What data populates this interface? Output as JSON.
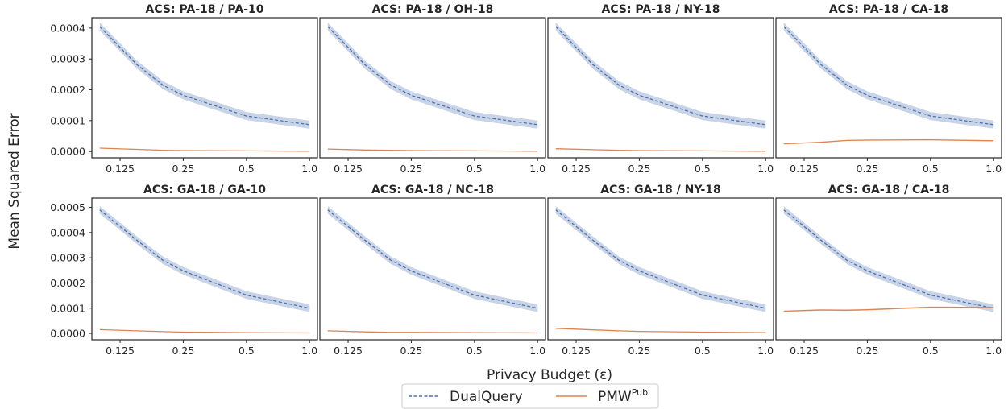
{
  "figure": {
    "ylabel": "Mean Squared Error",
    "xlabel": "Privacy Budget (ε)",
    "legend": [
      {
        "name": "DualQuery",
        "color": "#4c72b0",
        "style": "dashed"
      },
      {
        "name": "PMW",
        "sup": "Pub",
        "color": "#dd8452",
        "style": "solid"
      }
    ],
    "legend_placement": "bottom-center"
  },
  "chart_data": [
    {
      "type": "line",
      "title": "ACS: PA-18 / PA-10",
      "xscale": "log",
      "x": [
        0.1,
        0.15,
        0.2,
        0.25,
        0.5,
        1.0
      ],
      "xticks": [
        0.125,
        0.25,
        0.5,
        1.0
      ],
      "xticklabels": [
        "0.125",
        "0.25",
        "0.5",
        "1.0"
      ],
      "ylim": [
        0,
        0.00042
      ],
      "yticks": [
        "0.0000",
        "0.0001",
        "0.0002",
        "0.0003",
        "0.0004"
      ],
      "series": [
        {
          "name": "DualQuery",
          "values": [
            0.000405,
            0.000282,
            0.000215,
            0.000182,
            0.000115,
            8.7e-05
          ],
          "band": 1.3e-05
        },
        {
          "name": "PMW",
          "values": [
            1.1e-05,
            7e-06,
            4e-06,
            3e-06,
            2e-06,
            1e-06
          ],
          "band": 1e-06
        }
      ]
    },
    {
      "type": "line",
      "title": "ACS: PA-18 / OH-18",
      "xscale": "log",
      "x": [
        0.1,
        0.15,
        0.2,
        0.25,
        0.5,
        1.0
      ],
      "xticks": [
        0.125,
        0.25,
        0.5,
        1.0
      ],
      "xticklabels": [
        "0.125",
        "0.25",
        "0.5",
        "1.0"
      ],
      "ylim": [
        0,
        0.00042
      ],
      "yticks": [],
      "series": [
        {
          "name": "DualQuery",
          "values": [
            0.000405,
            0.000282,
            0.000215,
            0.000182,
            0.000115,
            8.7e-05
          ],
          "band": 1.3e-05
        },
        {
          "name": "PMW",
          "values": [
            8e-06,
            5e-06,
            4e-06,
            3e-06,
            2e-06,
            1e-06
          ],
          "band": 1e-06
        }
      ]
    },
    {
      "type": "line",
      "title": "ACS: PA-18 / NY-18",
      "xscale": "log",
      "x": [
        0.1,
        0.15,
        0.2,
        0.25,
        0.5,
        1.0
      ],
      "xticks": [
        0.125,
        0.25,
        0.5,
        1.0
      ],
      "xticklabels": [
        "0.125",
        "0.25",
        "0.5",
        "1.0"
      ],
      "ylim": [
        0,
        0.00042
      ],
      "yticks": [],
      "series": [
        {
          "name": "DualQuery",
          "values": [
            0.000405,
            0.000282,
            0.000215,
            0.000182,
            0.000115,
            8.7e-05
          ],
          "band": 1.3e-05
        },
        {
          "name": "PMW",
          "values": [
            9e-06,
            6e-06,
            4e-06,
            3e-06,
            2e-06,
            1e-06
          ],
          "band": 1e-06
        }
      ]
    },
    {
      "type": "line",
      "title": "ACS: PA-18 / CA-18",
      "xscale": "log",
      "x": [
        0.1,
        0.15,
        0.2,
        0.25,
        0.5,
        1.0
      ],
      "xticks": [
        0.125,
        0.25,
        0.5,
        1.0
      ],
      "xticklabels": [
        "0.125",
        "0.25",
        "0.5",
        "1.0"
      ],
      "ylim": [
        0,
        0.00042
      ],
      "yticks": [],
      "series": [
        {
          "name": "DualQuery",
          "values": [
            0.000405,
            0.000282,
            0.000215,
            0.000182,
            0.000115,
            8.7e-05
          ],
          "band": 1.3e-05
        },
        {
          "name": "PMW",
          "values": [
            2.5e-05,
            3e-05,
            3.6e-05,
            3.7e-05,
            3.8e-05,
            3.5e-05
          ],
          "band": 2e-06
        }
      ]
    },
    {
      "type": "line",
      "title": "ACS: GA-18 / GA-10",
      "xscale": "log",
      "x": [
        0.1,
        0.15,
        0.2,
        0.25,
        0.5,
        1.0
      ],
      "xticks": [
        0.125,
        0.25,
        0.5,
        1.0
      ],
      "xticklabels": [
        "0.125",
        "0.25",
        "0.5",
        "1.0"
      ],
      "ylim": [
        0,
        0.00052
      ],
      "yticks": [
        "0.0000",
        "0.0001",
        "0.0002",
        "0.0003",
        "0.0004",
        "0.0005"
      ],
      "series": [
        {
          "name": "DualQuery",
          "values": [
            0.00049,
            0.00037,
            0.00029,
            0.000248,
            0.000152,
            0.0001
          ],
          "band": 1.5e-05
        },
        {
          "name": "PMW",
          "values": [
            1.5e-05,
            1e-05,
            7e-06,
            5e-06,
            3e-06,
            2e-06
          ],
          "band": 1e-06
        }
      ]
    },
    {
      "type": "line",
      "title": "ACS: GA-18 / NC-18",
      "xscale": "log",
      "x": [
        0.1,
        0.15,
        0.2,
        0.25,
        0.5,
        1.0
      ],
      "xticks": [
        0.125,
        0.25,
        0.5,
        1.0
      ],
      "xticklabels": [
        "0.125",
        "0.25",
        "0.5",
        "1.0"
      ],
      "ylim": [
        0,
        0.00052
      ],
      "yticks": [],
      "series": [
        {
          "name": "DualQuery",
          "values": [
            0.00049,
            0.00037,
            0.00029,
            0.000248,
            0.000152,
            0.0001
          ],
          "band": 1.5e-05
        },
        {
          "name": "PMW",
          "values": [
            1e-05,
            6e-06,
            4e-06,
            4e-06,
            3e-06,
            2e-06
          ],
          "band": 1e-06
        }
      ]
    },
    {
      "type": "line",
      "title": "ACS: GA-18 / NY-18",
      "xscale": "log",
      "x": [
        0.1,
        0.15,
        0.2,
        0.25,
        0.5,
        1.0
      ],
      "xticks": [
        0.125,
        0.25,
        0.5,
        1.0
      ],
      "xticklabels": [
        "0.125",
        "0.25",
        "0.5",
        "1.0"
      ],
      "ylim": [
        0,
        0.00052
      ],
      "yticks": [],
      "series": [
        {
          "name": "DualQuery",
          "values": [
            0.00049,
            0.00037,
            0.00029,
            0.000248,
            0.000152,
            0.0001
          ],
          "band": 1.5e-05
        },
        {
          "name": "PMW",
          "values": [
            2e-05,
            1.4e-05,
            1e-05,
            8e-06,
            5e-06,
            3e-06
          ],
          "band": 1e-06
        }
      ]
    },
    {
      "type": "line",
      "title": "ACS: GA-18 / CA-18",
      "xscale": "log",
      "x": [
        0.1,
        0.15,
        0.2,
        0.25,
        0.5,
        1.0
      ],
      "xticks": [
        0.125,
        0.25,
        0.5,
        1.0
      ],
      "xticklabels": [
        "0.125",
        "0.25",
        "0.5",
        "1.0"
      ],
      "ylim": [
        0,
        0.00052
      ],
      "yticks": [],
      "series": [
        {
          "name": "DualQuery",
          "values": [
            0.00049,
            0.00037,
            0.00029,
            0.000248,
            0.000152,
            0.0001
          ],
          "band": 1.5e-05
        },
        {
          "name": "PMW",
          "values": [
            8.8e-05,
            9.3e-05,
            9.2e-05,
            9.4e-05,
            0.000104,
            0.000103
          ],
          "band": 3e-06
        }
      ]
    }
  ]
}
